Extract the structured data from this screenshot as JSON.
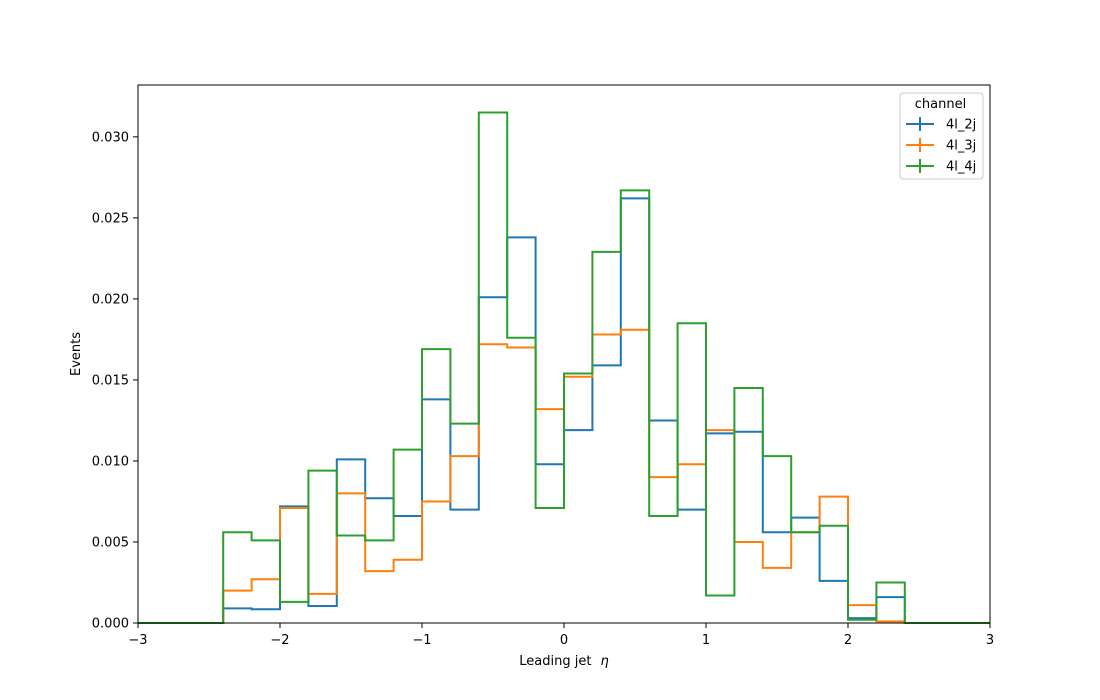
{
  "chart_data": {
    "type": "histogram-step",
    "xlabel": "Leading jet",
    "xlabel_symbol": "η",
    "ylabel": "Events",
    "xlim": [
      -3,
      3
    ],
    "ylim": [
      0,
      0.0332
    ],
    "x_ticks": [
      -3,
      -2,
      -1,
      0,
      1,
      2,
      3
    ],
    "x_tick_labels": [
      "−3",
      "−2",
      "−1",
      "0",
      "1",
      "2",
      "3"
    ],
    "y_ticks": [
      0,
      0.005,
      0.01,
      0.015,
      0.02,
      0.025,
      0.03
    ],
    "y_tick_labels": [
      "0.000",
      "0.005",
      "0.010",
      "0.015",
      "0.020",
      "0.025",
      "0.030"
    ],
    "bin_edges": [
      -3.0,
      -2.8,
      -2.6,
      -2.4,
      -2.2,
      -2.0,
      -1.8,
      -1.6,
      -1.4,
      -1.2,
      -1.0,
      -0.8,
      -0.6,
      -0.4,
      -0.2,
      0.0,
      0.2,
      0.4,
      0.6,
      0.8,
      1.0,
      1.2,
      1.4,
      1.6,
      1.8,
      2.0,
      2.2,
      2.4,
      2.6,
      2.8,
      3.0
    ],
    "legend": {
      "title": "channel",
      "position": "top-right"
    },
    "grid": false,
    "series": [
      {
        "name": "4l_2j",
        "color": "#1f77b4",
        "values": [
          0,
          0,
          0,
          0.0009,
          0.00085,
          0.0072,
          0.00105,
          0.0101,
          0.0077,
          0.0066,
          0.0138,
          0.007,
          0.0201,
          0.0238,
          0.0098,
          0.0119,
          0.0159,
          0.0262,
          0.0125,
          0.007,
          0.0117,
          0.0118,
          0.0056,
          0.0065,
          0.0026,
          0.0003,
          0.0016,
          0,
          0,
          0
        ]
      },
      {
        "name": "4l_3j",
        "color": "#ff7f0e",
        "values": [
          0,
          0,
          0,
          0.002,
          0.0027,
          0.0071,
          0.0018,
          0.008,
          0.0032,
          0.0039,
          0.0075,
          0.0103,
          0.0172,
          0.017,
          0.0132,
          0.0152,
          0.0178,
          0.0181,
          0.009,
          0.0098,
          0.0119,
          0.005,
          0.0034,
          0.0056,
          0.0078,
          0.0011,
          0.0001,
          0,
          0,
          0
        ]
      },
      {
        "name": "4l_4j",
        "color": "#2ca02c",
        "values": [
          0,
          0,
          0,
          0.0056,
          0.0051,
          0.0013,
          0.0094,
          0.0054,
          0.0051,
          0.0107,
          0.0169,
          0.0123,
          0.0315,
          0.0176,
          0.0071,
          0.0154,
          0.0229,
          0.0267,
          0.0066,
          0.0185,
          0.0017,
          0.0145,
          0.0103,
          0.0056,
          0.006,
          0.0002,
          0.0025,
          0,
          0,
          0
        ]
      }
    ]
  }
}
